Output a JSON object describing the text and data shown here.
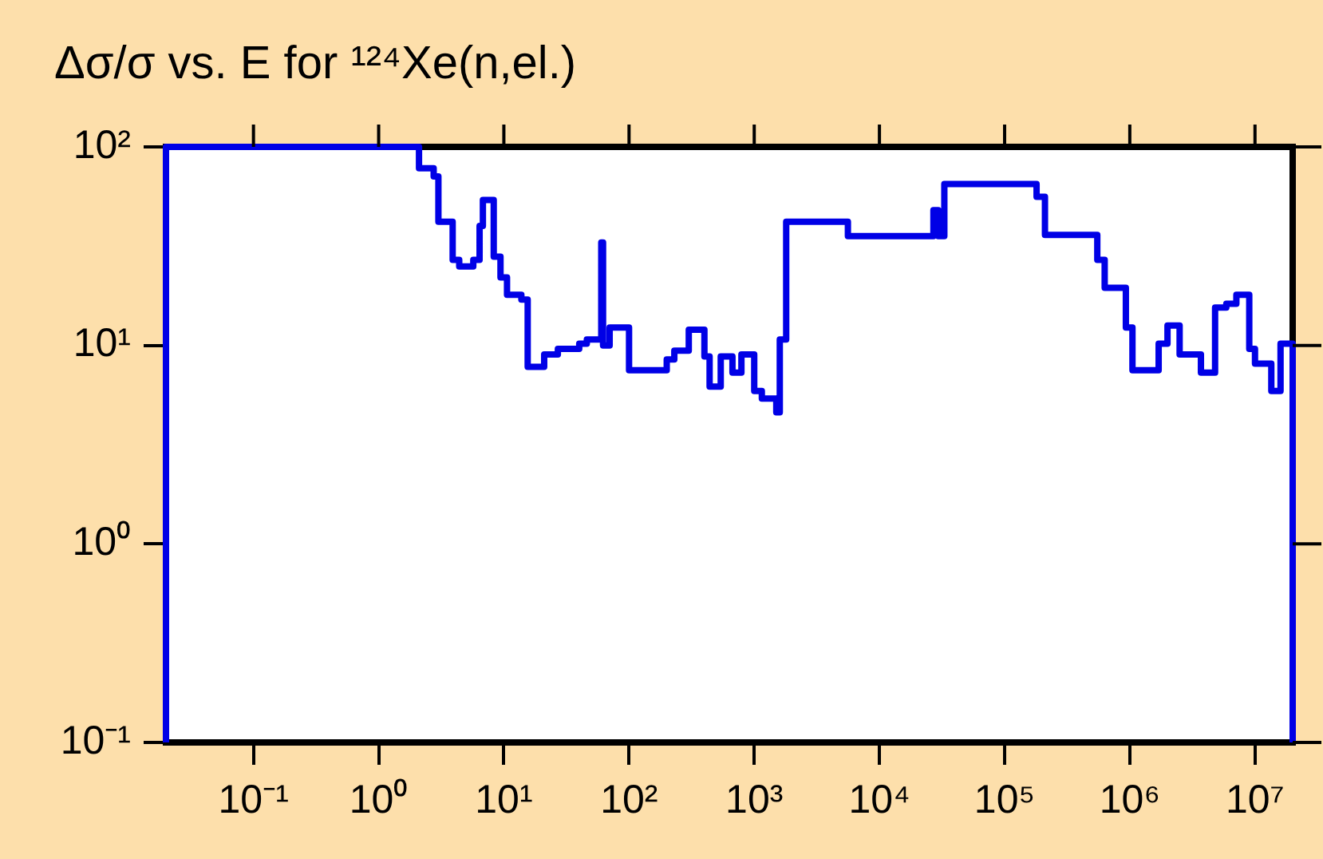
{
  "chart_data": {
    "type": "step",
    "title": "Δσ/σ vs. E for ¹²⁴Xe(n,el.)",
    "log": "xy",
    "grid": false,
    "legend": false,
    "marker": "none",
    "line_style": "solid",
    "xlim": [
      0.02,
      20000000
    ],
    "ylim": [
      0.1,
      100
    ],
    "xticks": [
      {
        "value": 0.1,
        "label": "10⁻¹"
      },
      {
        "value": 1,
        "label": "10⁰"
      },
      {
        "value": 10,
        "label": "10¹"
      },
      {
        "value": 100,
        "label": "10²"
      },
      {
        "value": 1000,
        "label": "10³"
      },
      {
        "value": 10000,
        "label": "10⁴"
      },
      {
        "value": 100000,
        "label": "10⁵"
      },
      {
        "value": 1000000,
        "label": "10⁶"
      },
      {
        "value": 10000000,
        "label": "10⁷"
      }
    ],
    "yticks": [
      {
        "value": 0.1,
        "label": "10⁻¹"
      },
      {
        "value": 1,
        "label": "10⁰"
      },
      {
        "value": 10,
        "label": "10¹"
      },
      {
        "value": 100,
        "label": "10²"
      }
    ],
    "series": [
      {
        "color": "#0000e6",
        "x": [
          0.02,
          0.02,
          2.1,
          2.75,
          3.0,
          3.9,
          4.4,
          5.7,
          6.4,
          6.8,
          8.3,
          9.4,
          10.6,
          13.8,
          15.5,
          21,
          27,
          40,
          46,
          60,
          62,
          70,
          100,
          200,
          230,
          300,
          400,
          440,
          540,
          670,
          790,
          1000,
          1150,
          1500,
          1600,
          1800,
          5600,
          27000,
          29500,
          33000,
          180000,
          210000,
          550000,
          630000,
          930000,
          1050000,
          1700000,
          2000000,
          2500000,
          3700000,
          4800000,
          5900000,
          7100000,
          9000000,
          10000000,
          13500000,
          16000000,
          20000000
        ],
        "values": [
          0.1,
          100,
          78,
          71,
          42,
          27,
          25,
          27,
          40,
          54,
          28,
          22,
          18,
          17,
          7.8,
          9,
          9.6,
          10.2,
          10.7,
          33,
          10,
          12.3,
          7.5,
          8.5,
          9.4,
          12,
          8.8,
          6.2,
          8.8,
          7.3,
          9,
          5.9,
          5.4,
          4.6,
          10.7,
          42,
          35.5,
          48,
          35.5,
          65,
          56,
          36,
          27,
          19.5,
          12.3,
          7.5,
          10.2,
          12.6,
          9,
          7.3,
          15.5,
          16.2,
          18,
          9.6,
          8.1,
          5.9,
          10.2,
          0.1
        ]
      }
    ]
  }
}
